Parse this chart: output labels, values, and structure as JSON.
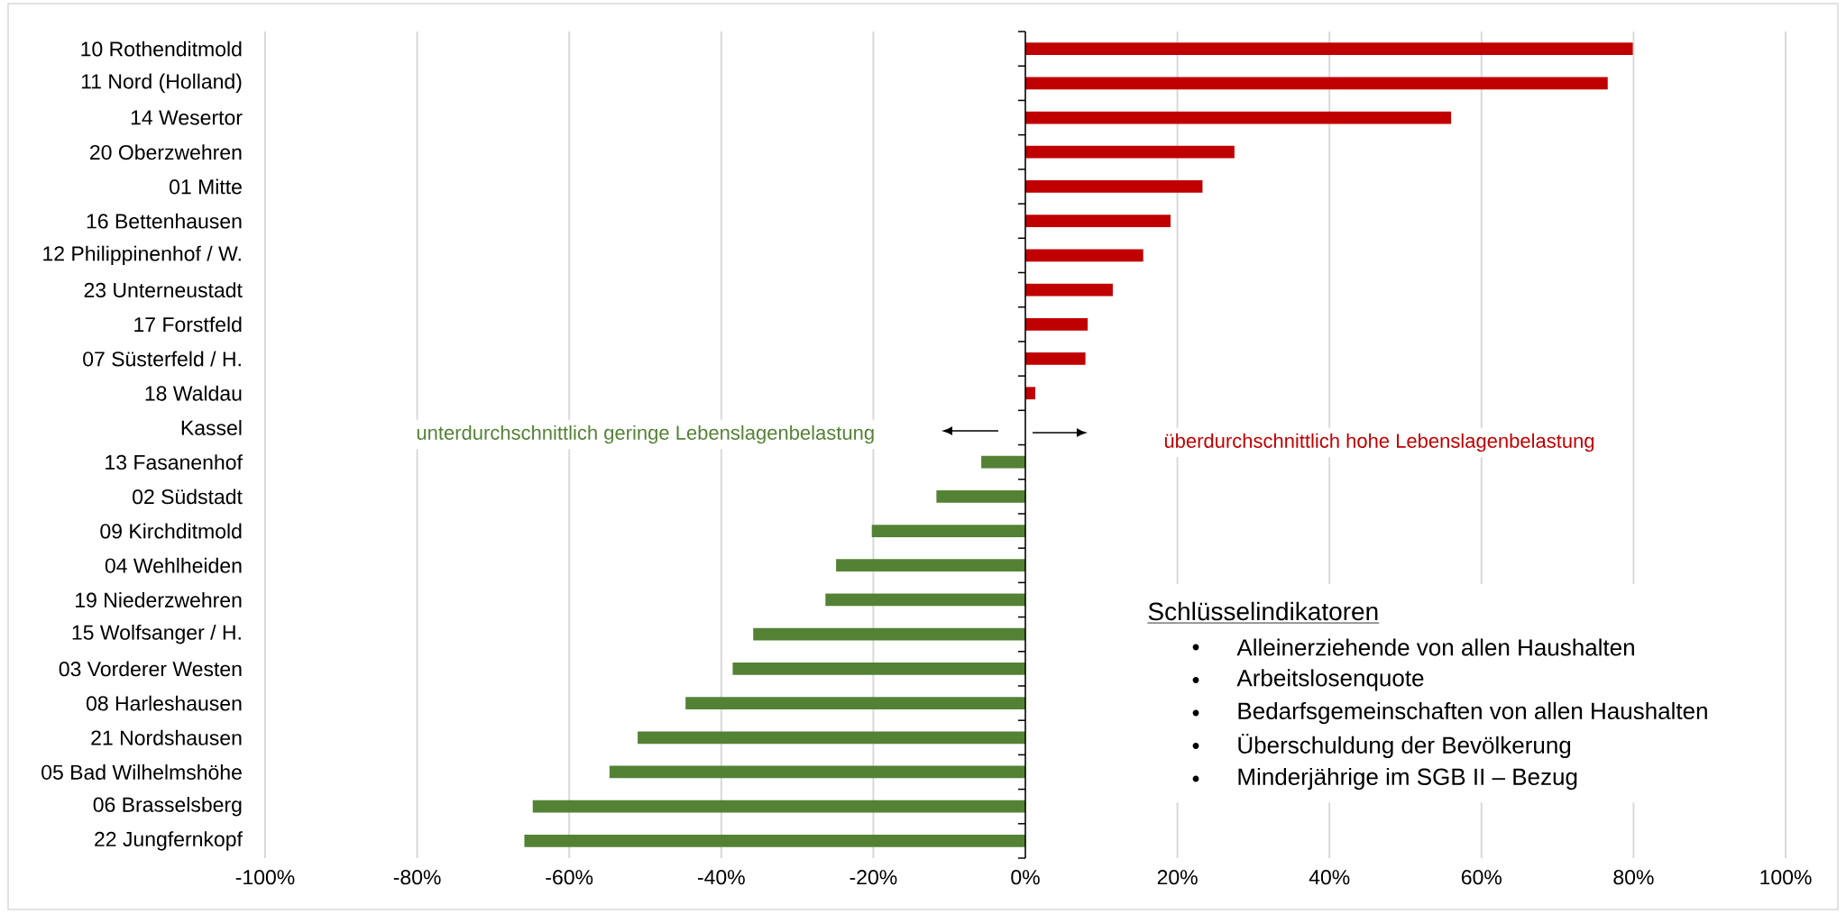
{
  "chart_data": {
    "type": "bar",
    "orientation": "horizontal",
    "categories": [
      "10 Rothenditmold",
      "11 Nord (Holland)",
      "14 Wesertor",
      "20 Oberzwehren",
      "01 Mitte",
      "16 Bettenhausen",
      "12 Philippinenhof / W.",
      "23 Unterneustadt",
      "17 Forstfeld",
      "07 Süsterfeld / H.",
      "18 Waldau",
      "Kassel",
      "13 Fasanenhof",
      "02 Südstadt",
      "09 Kirchditmold",
      "04 Wehlheiden",
      "19 Niederzwehren",
      "15 Wolfsanger / H.",
      "03 Vorderer Westen",
      "08 Harleshausen",
      "21 Nordshausen",
      "05 Bad Wilhelmshöhe",
      "06 Brasselsberg",
      "22 Jungfernkopf"
    ],
    "values": [
      79.9,
      76.6,
      56.0,
      27.5,
      23.3,
      19.1,
      15.5,
      11.5,
      8.2,
      7.9,
      1.3,
      null,
      -5.8,
      -11.7,
      -20.2,
      -24.9,
      -26.3,
      -35.8,
      -38.5,
      -44.7,
      -51.0,
      -54.7,
      -64.8,
      -65.9
    ],
    "colors": [
      "#c00000",
      "#c00000",
      "#c00000",
      "#c00000",
      "#c00000",
      "#c00000",
      "#c00000",
      "#c00000",
      "#c00000",
      "#c00000",
      "#c00000",
      null,
      "#548235",
      "#548235",
      "#548235",
      "#548235",
      "#548235",
      "#548235",
      "#548235",
      "#548235",
      "#548235",
      "#548235",
      "#548235",
      "#548235"
    ],
    "xlim": [
      -100,
      100
    ],
    "xticks": [
      {
        "value": -100,
        "label": "-100%"
      },
      {
        "value": -80,
        "label": "-80%"
      },
      {
        "value": -60,
        "label": "-60%"
      },
      {
        "value": -40,
        "label": "-40%"
      },
      {
        "value": -20,
        "label": "-20%"
      },
      {
        "value": 0,
        "label": "0%"
      },
      {
        "value": 20,
        "label": "20%"
      },
      {
        "value": 40,
        "label": "40%"
      },
      {
        "value": 60,
        "label": "60%"
      },
      {
        "value": 80,
        "label": "80%"
      },
      {
        "value": 100,
        "label": "100%"
      }
    ],
    "grid": "x",
    "annotations": [
      "unterdurchschnittlich geringe Lebenslagenbelastung",
      "überdurchschnittlich hohe Lebenslagenbelastung",
      "Schlüsselindikatoren",
      "Alleinerziehende von allen Haushalten",
      "Arbeitslosenquote",
      "Bedarfsgemeinschaften von allen Haushalten",
      "Überschuldung der Bevölkerung",
      "Minderjährige im SGB II – Bezug"
    ]
  }
}
